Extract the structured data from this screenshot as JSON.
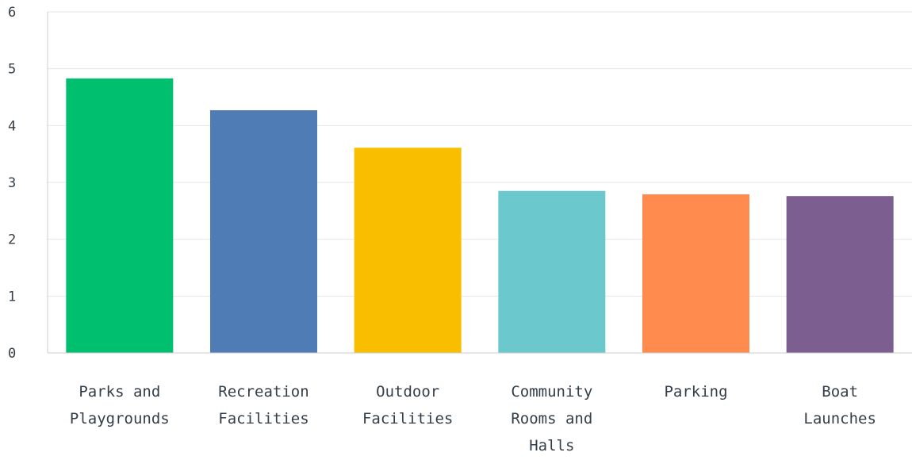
{
  "chart_data": {
    "type": "bar",
    "title": "",
    "xlabel": "",
    "ylabel": "",
    "ylim": [
      0,
      6
    ],
    "yticks": [
      0,
      1,
      2,
      3,
      4,
      5,
      6
    ],
    "grid": true,
    "legend": "none",
    "categories": [
      [
        "Parks and",
        "Playgrounds"
      ],
      [
        "Recreation",
        "Facilities"
      ],
      [
        "Outdoor",
        "Facilities"
      ],
      [
        "Community",
        "Rooms and",
        "Halls"
      ],
      [
        "Parking"
      ],
      [
        "Boat",
        "Launches"
      ]
    ],
    "values": [
      4.83,
      4.27,
      3.61,
      2.85,
      2.79,
      2.76
    ],
    "colors": [
      "#00bf6f",
      "#507cb6",
      "#f9be00",
      "#6bc8cd",
      "#ff8b4f",
      "#7d5e90"
    ],
    "gridColor": "#e6e6e6",
    "axisColor": "#cccccc"
  }
}
